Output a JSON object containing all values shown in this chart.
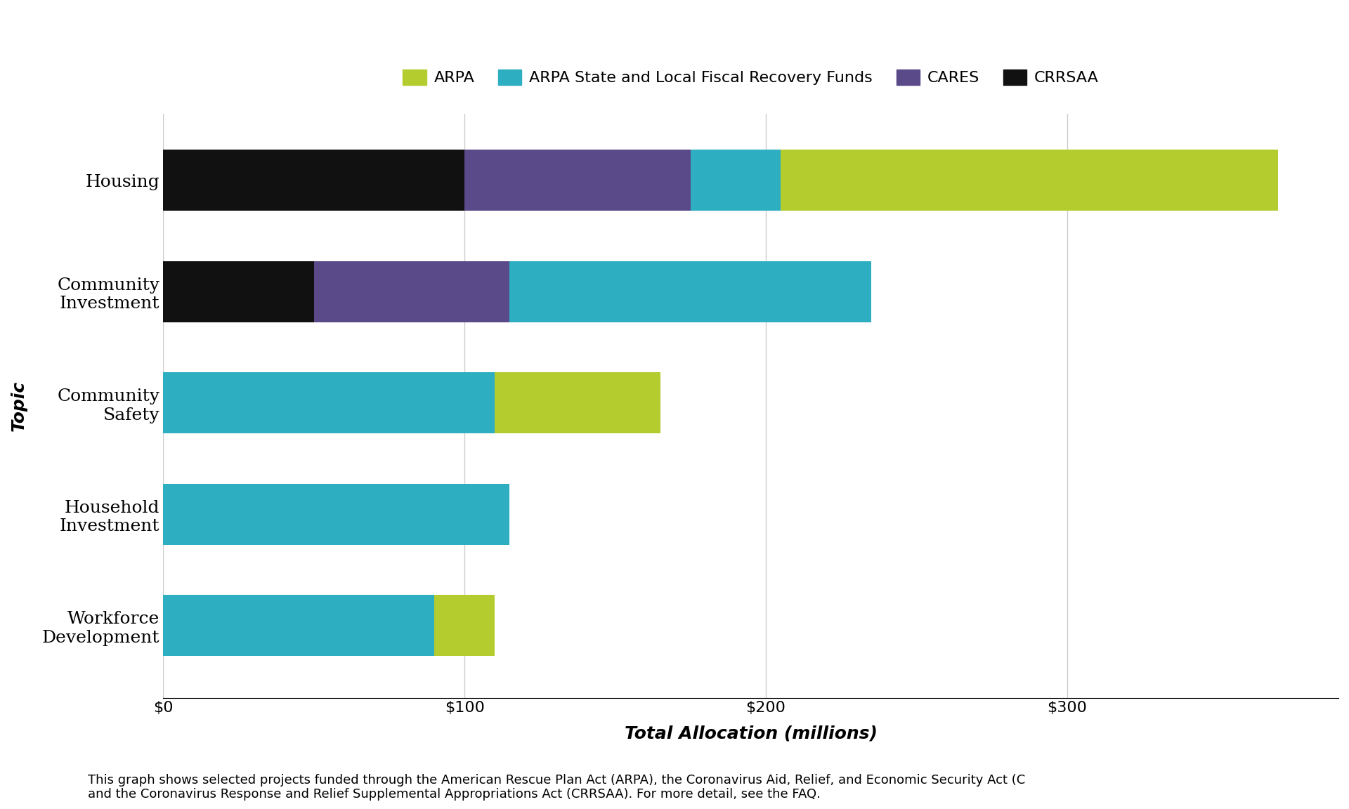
{
  "categories": [
    "Housing",
    "Community\nInvestment",
    "Community\nSafety",
    "Household\nInvestment",
    "Workforce\nDevelopment"
  ],
  "series": {
    "CRRSAA": [
      100,
      50,
      0,
      0,
      0
    ],
    "CARES": [
      75,
      65,
      0,
      0,
      0
    ],
    "ARPA State and Local Fiscal Recovery Funds": [
      30,
      120,
      110,
      115,
      90
    ],
    "ARPA": [
      165,
      0,
      55,
      0,
      20
    ]
  },
  "colors": {
    "ARPA": "#b5cc2e",
    "ARPA State and Local Fiscal Recovery Funds": "#2eaec1",
    "CARES": "#5b4a8a",
    "CRRSAA": "#111111"
  },
  "xlabel": "Total Allocation (millions)",
  "ylabel": "Topic",
  "xticks": [
    0,
    100,
    200,
    300
  ],
  "xtick_labels": [
    "$0",
    "$100",
    "$200",
    "$300"
  ],
  "xlim": [
    0,
    390
  ],
  "footnote": "This graph shows selected projects funded through the American Rescue Plan Act (ARPA), the Coronavirus Aid, Relief, and Economic Security Act (C\nand the Coronavirus Response and Relief Supplemental Appropriations Act (CRRSAA). For more detail, see the FAQ.",
  "background_color": "#ffffff",
  "legend_order": [
    "ARPA",
    "ARPA State and Local Fiscal Recovery Funds",
    "CARES",
    "CRRSAA"
  ]
}
